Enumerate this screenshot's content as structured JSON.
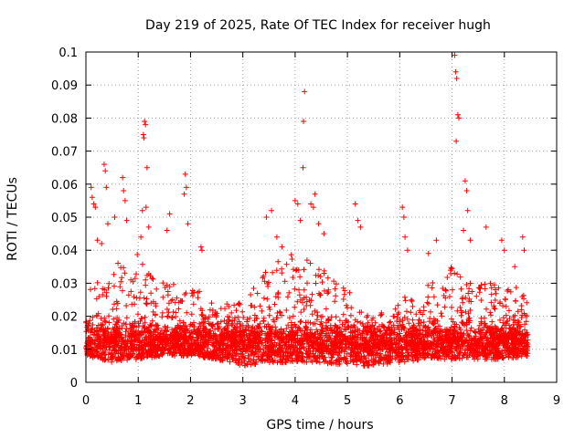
{
  "chart_data": {
    "type": "scatter",
    "title": "Day 219 of 2025, Rate Of TEC Index for receiver hugh",
    "xlabel": "GPS time / hours",
    "ylabel": "ROTI / TECUs",
    "xlim": [
      0,
      9
    ],
    "ylim": [
      0,
      0.1
    ],
    "x_ticks": [
      "0",
      "1",
      "2",
      "3",
      "4",
      "5",
      "6",
      "7",
      "8",
      "9"
    ],
    "y_ticks": [
      "0",
      "0.01",
      "0.02",
      "0.03",
      "0.04",
      "0.05",
      "0.06",
      "0.07",
      "0.08",
      "0.09",
      "0.1"
    ],
    "grid": true,
    "marker": "+",
    "color": "#ff0000",
    "x_range_of_data": [
      0,
      8.45
    ],
    "series": [
      {
        "name": "ROTI",
        "points": [
          [
            0.1,
            0.059
          ],
          [
            0.12,
            0.056
          ],
          [
            0.15,
            0.054
          ],
          [
            0.18,
            0.053
          ],
          [
            0.22,
            0.043
          ],
          [
            0.3,
            0.042
          ],
          [
            0.35,
            0.066
          ],
          [
            0.37,
            0.064
          ],
          [
            0.39,
            0.059
          ],
          [
            0.42,
            0.048
          ],
          [
            0.55,
            0.05
          ],
          [
            0.7,
            0.062
          ],
          [
            0.72,
            0.058
          ],
          [
            0.75,
            0.055
          ],
          [
            0.78,
            0.049
          ],
          [
            1.12,
            0.079
          ],
          [
            1.14,
            0.078
          ],
          [
            1.1,
            0.075
          ],
          [
            1.11,
            0.074
          ],
          [
            1.17,
            0.065
          ],
          [
            1.08,
            0.052
          ],
          [
            1.15,
            0.053
          ],
          [
            1.2,
            0.047
          ],
          [
            1.05,
            0.044
          ],
          [
            1.6,
            0.051
          ],
          [
            1.55,
            0.046
          ],
          [
            1.9,
            0.063
          ],
          [
            1.92,
            0.059
          ],
          [
            1.88,
            0.057
          ],
          [
            1.95,
            0.048
          ],
          [
            2.2,
            0.041
          ],
          [
            2.22,
            0.04
          ],
          [
            3.45,
            0.05
          ],
          [
            3.55,
            0.052
          ],
          [
            3.65,
            0.044
          ],
          [
            3.75,
            0.041
          ],
          [
            4.0,
            0.055
          ],
          [
            4.05,
            0.054
          ],
          [
            4.1,
            0.049
          ],
          [
            4.18,
            0.088
          ],
          [
            4.16,
            0.079
          ],
          [
            4.15,
            0.065
          ],
          [
            4.3,
            0.054
          ],
          [
            4.38,
            0.057
          ],
          [
            4.35,
            0.053
          ],
          [
            4.45,
            0.048
          ],
          [
            4.55,
            0.045
          ],
          [
            5.15,
            0.054
          ],
          [
            5.2,
            0.049
          ],
          [
            5.25,
            0.047
          ],
          [
            6.05,
            0.053
          ],
          [
            6.08,
            0.05
          ],
          [
            6.1,
            0.044
          ],
          [
            6.15,
            0.04
          ],
          [
            6.55,
            0.039
          ],
          [
            6.7,
            0.043
          ],
          [
            7.05,
            0.099
          ],
          [
            7.07,
            0.094
          ],
          [
            7.09,
            0.092
          ],
          [
            7.11,
            0.081
          ],
          [
            7.13,
            0.08
          ],
          [
            7.08,
            0.073
          ],
          [
            7.25,
            0.061
          ],
          [
            7.28,
            0.058
          ],
          [
            7.3,
            0.052
          ],
          [
            7.22,
            0.046
          ],
          [
            7.35,
            0.043
          ],
          [
            7.65,
            0.047
          ],
          [
            7.95,
            0.043
          ],
          [
            8.0,
            0.04
          ],
          [
            8.2,
            0.035
          ],
          [
            8.35,
            0.044
          ],
          [
            8.38,
            0.04
          ]
        ]
      }
    ],
    "bulk_density_profile": {
      "x_hours": [
        0,
        0.5,
        1,
        1.5,
        2,
        2.5,
        3,
        3.5,
        4,
        4.5,
        5,
        5.5,
        6,
        6.5,
        7,
        7.5,
        8,
        8.45
      ],
      "typical_upper_roti": [
        0.03,
        0.035,
        0.04,
        0.03,
        0.03,
        0.025,
        0.024,
        0.035,
        0.04,
        0.035,
        0.028,
        0.02,
        0.025,
        0.03,
        0.035,
        0.03,
        0.03,
        0.028
      ],
      "typical_lower_roti": [
        0.008,
        0.006,
        0.007,
        0.008,
        0.008,
        0.007,
        0.005,
        0.006,
        0.006,
        0.006,
        0.005,
        0.005,
        0.006,
        0.007,
        0.007,
        0.007,
        0.007,
        0.008
      ],
      "baseline_roti": 0.012
    }
  }
}
